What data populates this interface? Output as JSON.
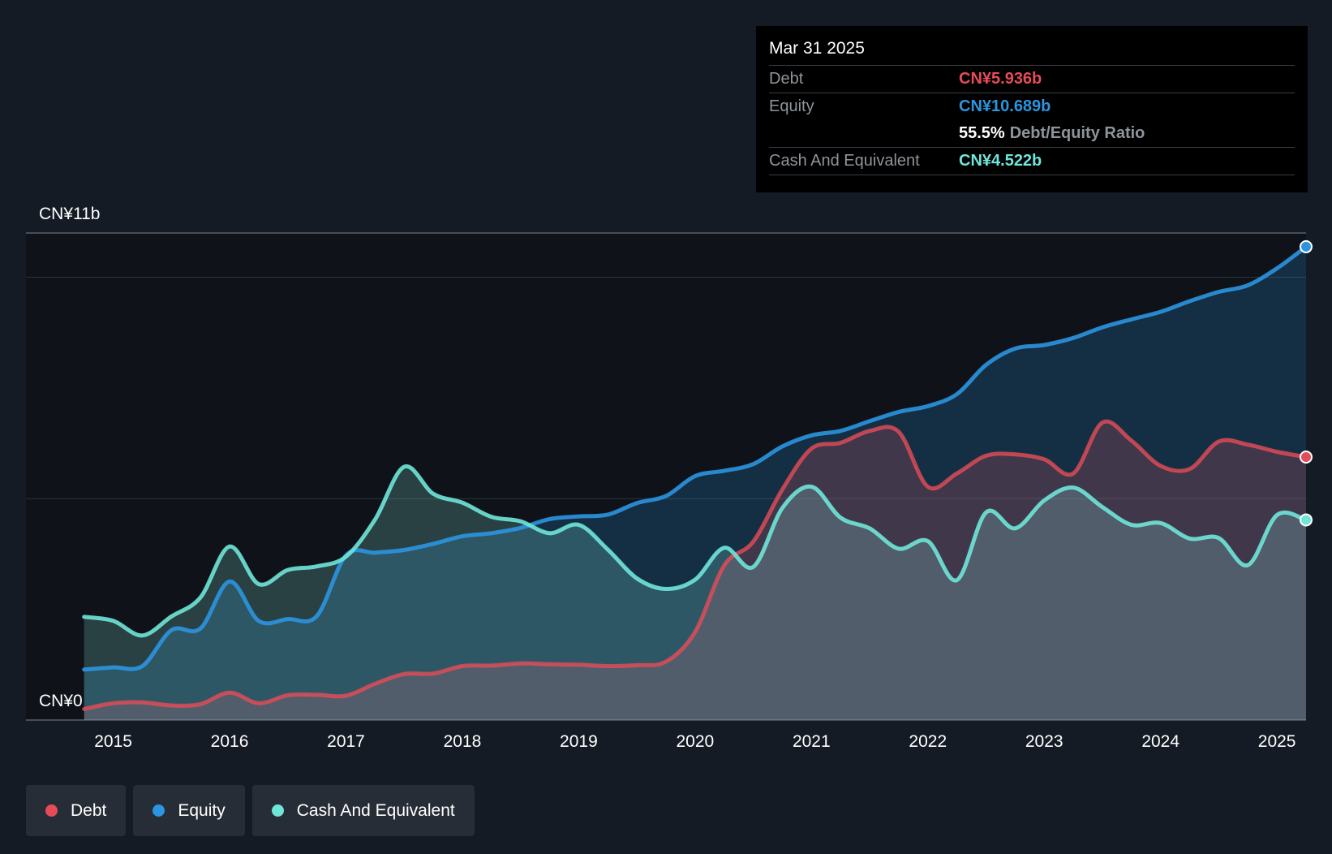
{
  "tooltip": {
    "date": "Mar 31 2025",
    "debt_label": "Debt",
    "debt_value": "CN¥5.936b",
    "equity_label": "Equity",
    "equity_value": "CN¥10.689b",
    "ratio_value": "55.5%",
    "ratio_label": "Debt/Equity Ratio",
    "cash_label": "Cash And Equivalent",
    "cash_value": "CN¥4.522b"
  },
  "legend": {
    "debt": "Debt",
    "equity": "Equity",
    "cash": "Cash And Equivalent"
  },
  "colors": {
    "debt": "#e64c58",
    "equity": "#2b95e0",
    "cash": "#6fe6d8",
    "background": "#151b24"
  },
  "chart_data": {
    "type": "area",
    "ylim": [
      0,
      11
    ],
    "y_tick_labels": [
      "CN¥11b",
      "CN¥0"
    ],
    "x_tick_labels": [
      "2015",
      "2016",
      "2017",
      "2018",
      "2019",
      "2020",
      "2021",
      "2022",
      "2023",
      "2024",
      "2025"
    ],
    "x_range": [
      2014.25,
      2025.25
    ],
    "grid": true,
    "series": [
      {
        "name": "Equity",
        "x": [
          2014.75,
          2015.0,
          2015.25,
          2015.5,
          2015.75,
          2016.0,
          2016.25,
          2016.5,
          2016.75,
          2017.0,
          2017.25,
          2017.5,
          2017.75,
          2018.0,
          2018.25,
          2018.5,
          2018.75,
          2019.0,
          2019.25,
          2019.5,
          2019.75,
          2020.0,
          2020.25,
          2020.5,
          2020.75,
          2021.0,
          2021.25,
          2021.5,
          2021.75,
          2022.0,
          2022.25,
          2022.5,
          2022.75,
          2023.0,
          2023.25,
          2023.5,
          2023.75,
          2024.0,
          2024.25,
          2024.5,
          2024.75,
          2025.0,
          2025.25
        ],
        "values": [
          1.14,
          1.19,
          1.22,
          2.03,
          2.07,
          3.13,
          2.24,
          2.28,
          2.35,
          3.72,
          3.78,
          3.84,
          3.98,
          4.15,
          4.22,
          4.34,
          4.54,
          4.6,
          4.64,
          4.9,
          5.06,
          5.51,
          5.63,
          5.78,
          6.18,
          6.43,
          6.53,
          6.75,
          6.96,
          7.09,
          7.36,
          8.02,
          8.39,
          8.47,
          8.63,
          8.87,
          9.05,
          9.22,
          9.46,
          9.67,
          9.82,
          10.2,
          10.69
        ]
      },
      {
        "name": "Debt",
        "x": [
          2014.75,
          2015.0,
          2015.25,
          2015.5,
          2015.75,
          2016.0,
          2016.25,
          2016.5,
          2016.75,
          2017.0,
          2017.25,
          2017.5,
          2017.75,
          2018.0,
          2018.25,
          2018.5,
          2018.75,
          2019.0,
          2019.25,
          2019.5,
          2019.75,
          2020.0,
          2020.25,
          2020.5,
          2020.75,
          2021.0,
          2021.25,
          2021.5,
          2021.75,
          2022.0,
          2022.25,
          2022.5,
          2022.75,
          2023.0,
          2023.25,
          2023.5,
          2023.75,
          2024.0,
          2024.25,
          2024.5,
          2024.75,
          2025.0,
          2025.25
        ],
        "values": [
          0.25,
          0.38,
          0.4,
          0.33,
          0.36,
          0.62,
          0.38,
          0.56,
          0.57,
          0.55,
          0.82,
          1.04,
          1.05,
          1.22,
          1.23,
          1.28,
          1.26,
          1.25,
          1.22,
          1.24,
          1.32,
          1.99,
          3.49,
          4.03,
          5.21,
          6.13,
          6.26,
          6.53,
          6.51,
          5.27,
          5.57,
          5.97,
          6.0,
          5.89,
          5.57,
          6.72,
          6.31,
          5.74,
          5.67,
          6.29,
          6.22,
          6.06,
          5.94
        ]
      },
      {
        "name": "Cash And Equivalent",
        "x": [
          2014.75,
          2015.0,
          2015.25,
          2015.5,
          2015.75,
          2016.0,
          2016.25,
          2016.5,
          2016.75,
          2017.0,
          2017.25,
          2017.5,
          2017.75,
          2018.0,
          2018.25,
          2018.5,
          2018.75,
          2019.0,
          2019.25,
          2019.5,
          2019.75,
          2020.0,
          2020.25,
          2020.5,
          2020.75,
          2021.0,
          2021.25,
          2021.5,
          2021.75,
          2022.0,
          2022.25,
          2022.5,
          2022.75,
          2023.0,
          2023.25,
          2023.5,
          2023.75,
          2024.0,
          2024.25,
          2024.5,
          2024.75,
          2025.0,
          2025.25
        ],
        "values": [
          2.33,
          2.24,
          1.91,
          2.34,
          2.77,
          3.92,
          3.07,
          3.39,
          3.47,
          3.69,
          4.53,
          5.72,
          5.11,
          4.91,
          4.59,
          4.49,
          4.22,
          4.41,
          3.85,
          3.2,
          2.96,
          3.17,
          3.89,
          3.46,
          4.79,
          5.27,
          4.57,
          4.33,
          3.87,
          4.04,
          3.16,
          4.69,
          4.33,
          4.96,
          5.25,
          4.81,
          4.41,
          4.45,
          4.1,
          4.11,
          3.5,
          4.63,
          4.52
        ]
      }
    ]
  }
}
